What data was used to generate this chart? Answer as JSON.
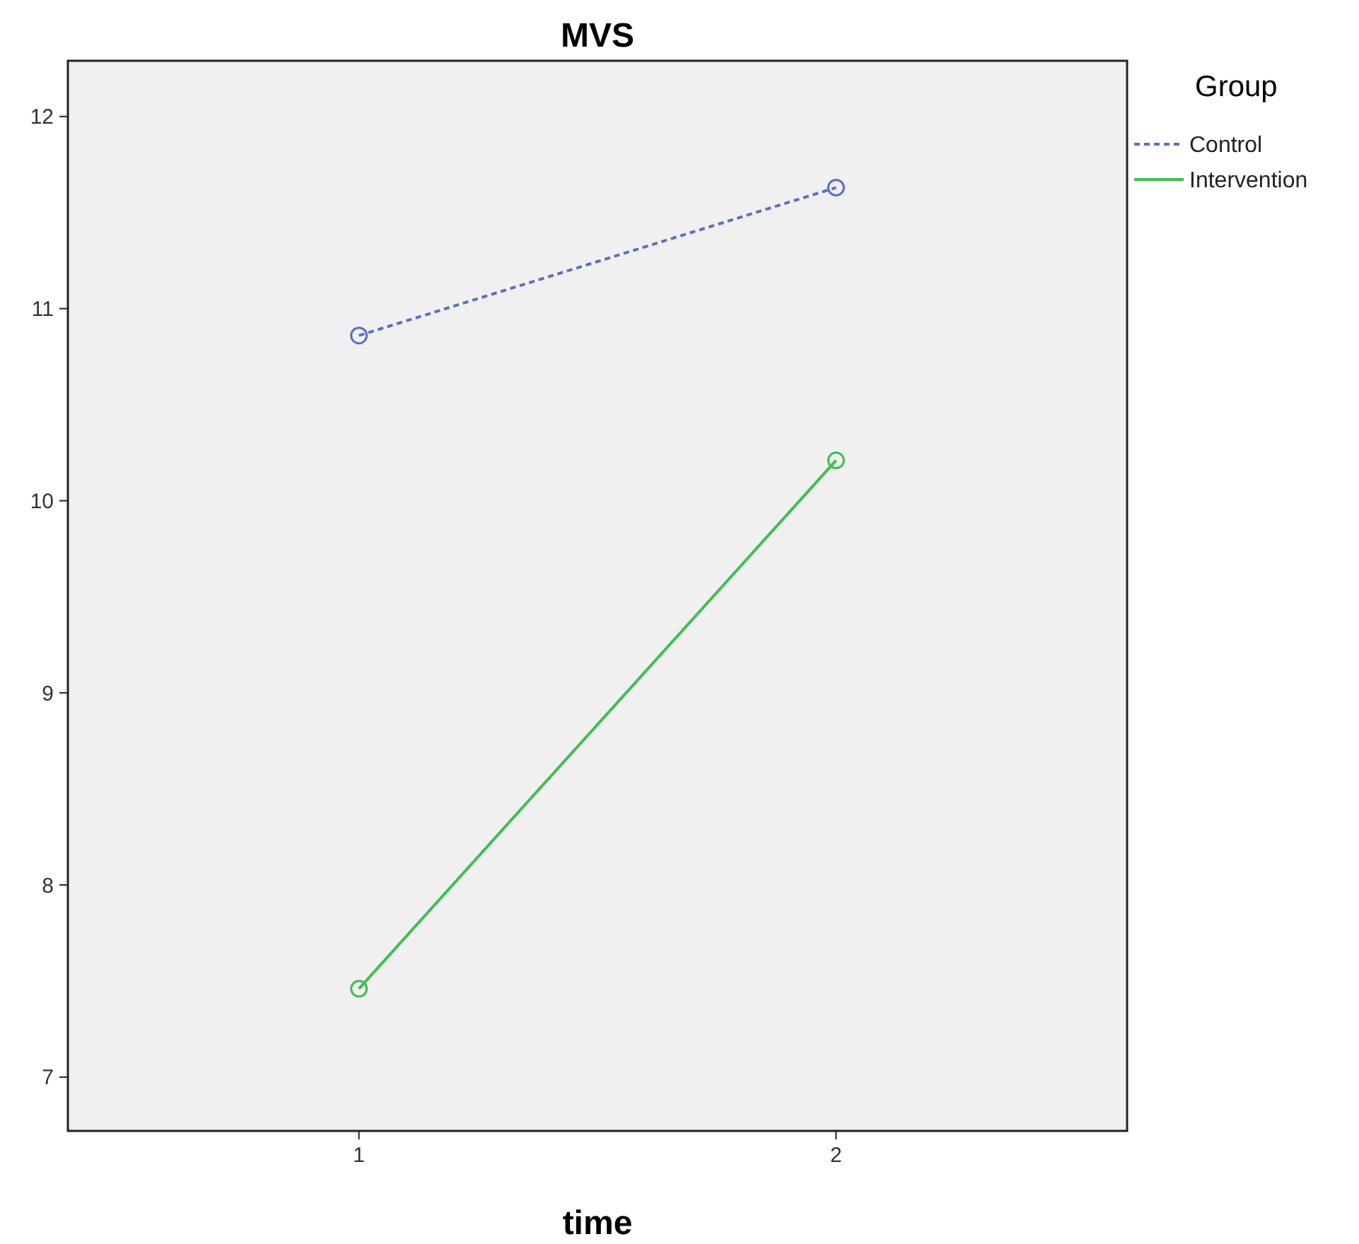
{
  "chart_data": {
    "type": "line",
    "title": "MVS",
    "xlabel": "time",
    "legend_title": "Group",
    "categories": [
      "1",
      "2"
    ],
    "series": [
      {
        "name": "Control",
        "color": "#5a6ec8",
        "values": [
          10.86,
          11.63
        ],
        "line_style": "dashed"
      },
      {
        "name": "Intervention",
        "color": "#3fbf4f",
        "values": [
          7.46,
          10.21
        ],
        "line_style": "solid"
      }
    ],
    "ylim": [
      6.72,
      12.29
    ],
    "yticks": [
      7,
      8,
      9,
      10,
      11,
      12
    ],
    "grid": false,
    "legend": "top right",
    "marker": "circle"
  }
}
